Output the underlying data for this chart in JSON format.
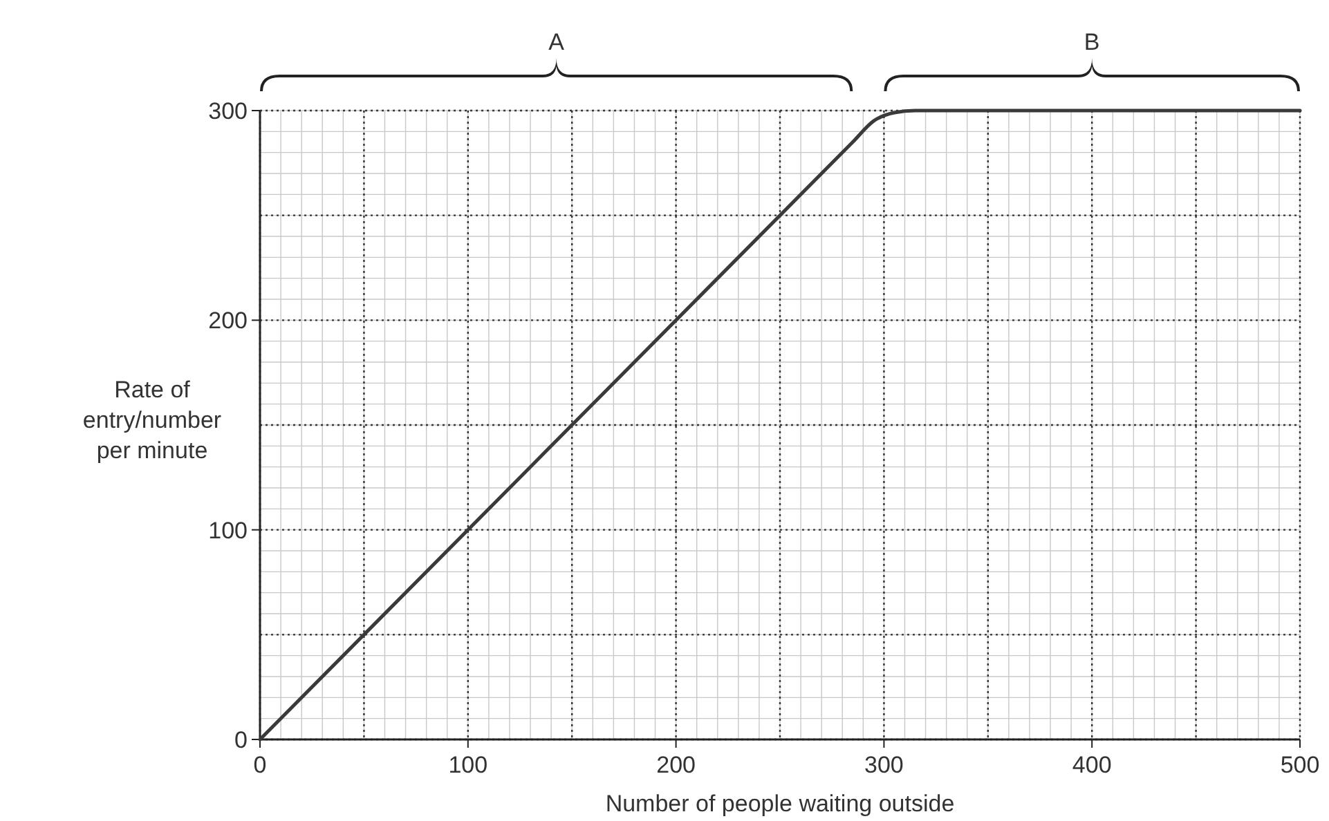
{
  "chart_data": {
    "type": "line",
    "xlabel": "Number of people waiting outside",
    "ylabel": "Rate of entry/number per minute",
    "x": [
      0,
      285,
      295,
      305,
      315,
      500
    ],
    "series": [
      {
        "color": "#3a3a3a",
        "values": [
          0,
          285,
          295,
          299,
          300,
          300
        ]
      }
    ],
    "xlim": [
      0,
      500
    ],
    "ylim": [
      0,
      300
    ],
    "xticks": [
      0,
      100,
      200,
      300,
      400,
      500
    ],
    "yticks": [
      0,
      100,
      200,
      300
    ],
    "grid": true,
    "annotations": [
      "A",
      "B"
    ]
  }
}
